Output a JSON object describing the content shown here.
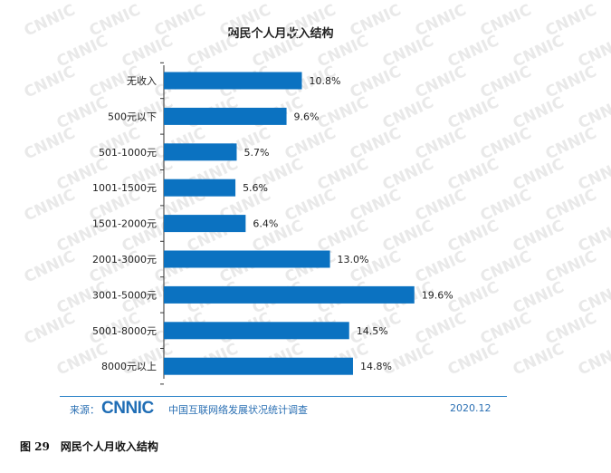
{
  "chart_data": {
    "type": "bar",
    "orientation": "horizontal",
    "title": "网民个人月收入结构",
    "categories": [
      "无收入",
      "500元以下",
      "501-1000元",
      "1001-1500元",
      "1501-2000元",
      "2001-3000元",
      "3001-5000元",
      "5001-8000元",
      "8000元以上"
    ],
    "values": [
      10.8,
      9.6,
      5.7,
      5.6,
      6.4,
      13.0,
      19.6,
      14.5,
      14.8
    ],
    "value_labels": [
      "10.8%",
      "9.6%",
      "5.7%",
      "5.6%",
      "6.4%",
      "13.0%",
      "19.6%",
      "14.5%",
      "14.8%"
    ],
    "xlim": [
      0,
      25
    ],
    "grid": false,
    "bar_color": "#0b72c1"
  },
  "footer": {
    "source_label": "来源：",
    "logo_text": "CNNIC",
    "org_name": "中国互联网络发展状况统计调查",
    "date": "2020.12"
  },
  "caption": {
    "number": "图 29",
    "text": "网民个人月收入结构"
  },
  "watermark": "CNNIC"
}
